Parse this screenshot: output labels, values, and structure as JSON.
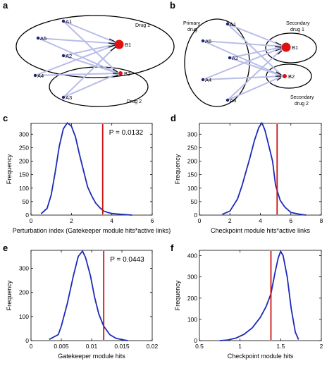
{
  "panels": {
    "a": {
      "letter": "a",
      "ellipses": [
        {
          "label": "Drug 1"
        },
        {
          "label": "Drug 2"
        }
      ],
      "nodes": [
        "A1",
        "A5",
        "A2",
        "A4",
        "A3",
        "B1",
        "B2"
      ]
    },
    "b": {
      "letter": "b",
      "primary_label_1": "Primary",
      "primary_label_2": "drug",
      "secondary1_label_1": "Secondary",
      "secondary1_label_2": "drug 1",
      "secondary2_label_1": "Secondary",
      "secondary2_label_2": "drug 2",
      "nodes": [
        "A1",
        "A5",
        "A2",
        "A4",
        "A3",
        "B1",
        "B2"
      ]
    }
  },
  "colors": {
    "curve": "#1c2ab8",
    "marker": "#cc1111",
    "edge": "#b8bde8",
    "node_a": "#1a237e",
    "node_b": "#e01010"
  },
  "chart_data": [
    {
      "letter": "c",
      "type": "line",
      "xlabel": "Perturbation index (Gatekeeper module hits*active links)",
      "ylabel": "Frequency",
      "xlim": [
        0,
        6
      ],
      "ylim": [
        0,
        340
      ],
      "xticks": [
        "0",
        "2",
        "4",
        "6"
      ],
      "yticks": [
        "0",
        "50",
        "100",
        "150",
        "200",
        "250",
        "300"
      ],
      "annotation": "P = 0.0132",
      "marker_x": 3.55,
      "x": [
        0.5,
        0.8,
        1.0,
        1.2,
        1.4,
        1.6,
        1.8,
        2.0,
        2.2,
        2.4,
        2.6,
        2.8,
        3.0,
        3.2,
        3.4,
        3.6,
        3.8,
        4.0,
        4.3,
        4.6,
        5.0
      ],
      "y": [
        5,
        25,
        75,
        160,
        255,
        320,
        342,
        330,
        290,
        225,
        165,
        105,
        72,
        45,
        28,
        15,
        10,
        6,
        4,
        2,
        0
      ]
    },
    {
      "letter": "d",
      "type": "line",
      "xlabel": "Checkpoint module hits*active links",
      "ylabel": "Frequency",
      "xlim": [
        0,
        8
      ],
      "ylim": [
        0,
        340
      ],
      "xticks": [
        "0",
        "2",
        "4",
        "6",
        "8"
      ],
      "yticks": [
        "0",
        "50",
        "100",
        "150",
        "200",
        "250",
        "300"
      ],
      "annotation": "",
      "marker_x": 5.1,
      "x": [
        1.5,
        2.0,
        2.5,
        2.8,
        3.0,
        3.3,
        3.6,
        3.9,
        4.1,
        4.3,
        4.5,
        4.8,
        5.0,
        5.3,
        5.6,
        6.0,
        6.5,
        7.0
      ],
      "y": [
        3,
        15,
        60,
        110,
        150,
        210,
        275,
        325,
        342,
        315,
        270,
        200,
        110,
        55,
        30,
        10,
        4,
        0
      ]
    },
    {
      "letter": "e",
      "type": "line",
      "xlabel": "Gatekeeper module hits",
      "ylabel": "Frequency",
      "xlim": [
        0,
        0.02
      ],
      "ylim": [
        0,
        375
      ],
      "xticks": [
        "0",
        "0.005",
        "0.01",
        "0.015",
        "0.02"
      ],
      "yticks": [
        "0",
        "100",
        "200",
        "300"
      ],
      "annotation": "P = 0.0443",
      "marker_x": 0.012,
      "x": [
        0.003,
        0.0045,
        0.005,
        0.006,
        0.007,
        0.0078,
        0.0085,
        0.009,
        0.0098,
        0.0105,
        0.0112,
        0.012,
        0.013,
        0.014,
        0.015,
        0.016
      ],
      "y": [
        5,
        25,
        60,
        155,
        270,
        350,
        372,
        345,
        270,
        180,
        110,
        60,
        25,
        10,
        4,
        0
      ]
    },
    {
      "letter": "f",
      "type": "line",
      "xlabel": "Checkpoint module hits",
      "ylabel": "Frequency",
      "xlim": [
        0.5,
        2
      ],
      "ylim": [
        0,
        425
      ],
      "xticks": [
        "0.5",
        "1",
        "1.5",
        "2"
      ],
      "yticks": [
        "0",
        "100",
        "200",
        "300",
        "400"
      ],
      "annotation": "",
      "marker_x": 1.38,
      "x": [
        0.75,
        0.85,
        0.95,
        1.05,
        1.15,
        1.25,
        1.32,
        1.38,
        1.43,
        1.47,
        1.5,
        1.53,
        1.58,
        1.63,
        1.68,
        1.72
      ],
      "y": [
        0,
        3,
        12,
        30,
        60,
        110,
        160,
        220,
        320,
        390,
        420,
        400,
        300,
        150,
        40,
        5
      ]
    }
  ]
}
